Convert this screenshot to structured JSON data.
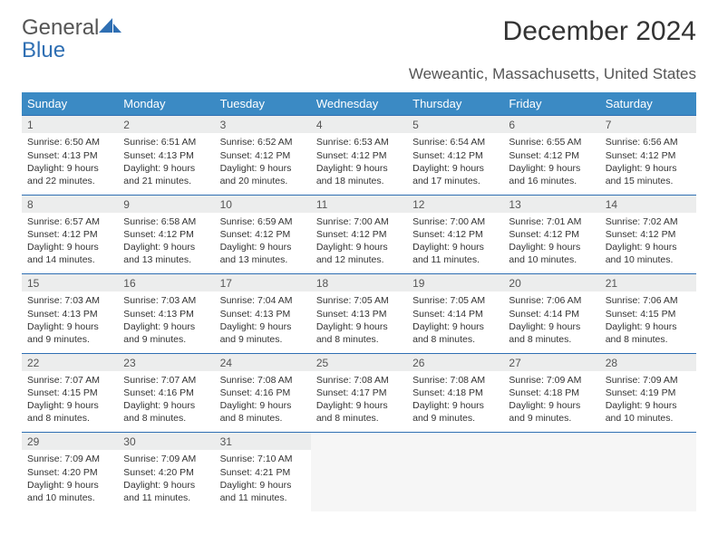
{
  "logo": {
    "word1": "General",
    "word2": "Blue"
  },
  "title": "December 2024",
  "location": "Weweantic, Massachusetts, United States",
  "colors": {
    "header_bg": "#3b8ac4",
    "header_text": "#ffffff",
    "daynum_bg": "#eceded",
    "daynum_border": "#2f6fb3",
    "body_text": "#333333",
    "logo_gray": "#555555",
    "logo_blue": "#2f6fb3"
  },
  "day_headers": [
    "Sunday",
    "Monday",
    "Tuesday",
    "Wednesday",
    "Thursday",
    "Friday",
    "Saturday"
  ],
  "weeks": [
    [
      {
        "n": "1",
        "sr": "Sunrise: 6:50 AM",
        "ss": "Sunset: 4:13 PM",
        "d1": "Daylight: 9 hours",
        "d2": "and 22 minutes."
      },
      {
        "n": "2",
        "sr": "Sunrise: 6:51 AM",
        "ss": "Sunset: 4:13 PM",
        "d1": "Daylight: 9 hours",
        "d2": "and 21 minutes."
      },
      {
        "n": "3",
        "sr": "Sunrise: 6:52 AM",
        "ss": "Sunset: 4:12 PM",
        "d1": "Daylight: 9 hours",
        "d2": "and 20 minutes."
      },
      {
        "n": "4",
        "sr": "Sunrise: 6:53 AM",
        "ss": "Sunset: 4:12 PM",
        "d1": "Daylight: 9 hours",
        "d2": "and 18 minutes."
      },
      {
        "n": "5",
        "sr": "Sunrise: 6:54 AM",
        "ss": "Sunset: 4:12 PM",
        "d1": "Daylight: 9 hours",
        "d2": "and 17 minutes."
      },
      {
        "n": "6",
        "sr": "Sunrise: 6:55 AM",
        "ss": "Sunset: 4:12 PM",
        "d1": "Daylight: 9 hours",
        "d2": "and 16 minutes."
      },
      {
        "n": "7",
        "sr": "Sunrise: 6:56 AM",
        "ss": "Sunset: 4:12 PM",
        "d1": "Daylight: 9 hours",
        "d2": "and 15 minutes."
      }
    ],
    [
      {
        "n": "8",
        "sr": "Sunrise: 6:57 AM",
        "ss": "Sunset: 4:12 PM",
        "d1": "Daylight: 9 hours",
        "d2": "and 14 minutes."
      },
      {
        "n": "9",
        "sr": "Sunrise: 6:58 AM",
        "ss": "Sunset: 4:12 PM",
        "d1": "Daylight: 9 hours",
        "d2": "and 13 minutes."
      },
      {
        "n": "10",
        "sr": "Sunrise: 6:59 AM",
        "ss": "Sunset: 4:12 PM",
        "d1": "Daylight: 9 hours",
        "d2": "and 13 minutes."
      },
      {
        "n": "11",
        "sr": "Sunrise: 7:00 AM",
        "ss": "Sunset: 4:12 PM",
        "d1": "Daylight: 9 hours",
        "d2": "and 12 minutes."
      },
      {
        "n": "12",
        "sr": "Sunrise: 7:00 AM",
        "ss": "Sunset: 4:12 PM",
        "d1": "Daylight: 9 hours",
        "d2": "and 11 minutes."
      },
      {
        "n": "13",
        "sr": "Sunrise: 7:01 AM",
        "ss": "Sunset: 4:12 PM",
        "d1": "Daylight: 9 hours",
        "d2": "and 10 minutes."
      },
      {
        "n": "14",
        "sr": "Sunrise: 7:02 AM",
        "ss": "Sunset: 4:12 PM",
        "d1": "Daylight: 9 hours",
        "d2": "and 10 minutes."
      }
    ],
    [
      {
        "n": "15",
        "sr": "Sunrise: 7:03 AM",
        "ss": "Sunset: 4:13 PM",
        "d1": "Daylight: 9 hours",
        "d2": "and 9 minutes."
      },
      {
        "n": "16",
        "sr": "Sunrise: 7:03 AM",
        "ss": "Sunset: 4:13 PM",
        "d1": "Daylight: 9 hours",
        "d2": "and 9 minutes."
      },
      {
        "n": "17",
        "sr": "Sunrise: 7:04 AM",
        "ss": "Sunset: 4:13 PM",
        "d1": "Daylight: 9 hours",
        "d2": "and 9 minutes."
      },
      {
        "n": "18",
        "sr": "Sunrise: 7:05 AM",
        "ss": "Sunset: 4:13 PM",
        "d1": "Daylight: 9 hours",
        "d2": "and 8 minutes."
      },
      {
        "n": "19",
        "sr": "Sunrise: 7:05 AM",
        "ss": "Sunset: 4:14 PM",
        "d1": "Daylight: 9 hours",
        "d2": "and 8 minutes."
      },
      {
        "n": "20",
        "sr": "Sunrise: 7:06 AM",
        "ss": "Sunset: 4:14 PM",
        "d1": "Daylight: 9 hours",
        "d2": "and 8 minutes."
      },
      {
        "n": "21",
        "sr": "Sunrise: 7:06 AM",
        "ss": "Sunset: 4:15 PM",
        "d1": "Daylight: 9 hours",
        "d2": "and 8 minutes."
      }
    ],
    [
      {
        "n": "22",
        "sr": "Sunrise: 7:07 AM",
        "ss": "Sunset: 4:15 PM",
        "d1": "Daylight: 9 hours",
        "d2": "and 8 minutes."
      },
      {
        "n": "23",
        "sr": "Sunrise: 7:07 AM",
        "ss": "Sunset: 4:16 PM",
        "d1": "Daylight: 9 hours",
        "d2": "and 8 minutes."
      },
      {
        "n": "24",
        "sr": "Sunrise: 7:08 AM",
        "ss": "Sunset: 4:16 PM",
        "d1": "Daylight: 9 hours",
        "d2": "and 8 minutes."
      },
      {
        "n": "25",
        "sr": "Sunrise: 7:08 AM",
        "ss": "Sunset: 4:17 PM",
        "d1": "Daylight: 9 hours",
        "d2": "and 8 minutes."
      },
      {
        "n": "26",
        "sr": "Sunrise: 7:08 AM",
        "ss": "Sunset: 4:18 PM",
        "d1": "Daylight: 9 hours",
        "d2": "and 9 minutes."
      },
      {
        "n": "27",
        "sr": "Sunrise: 7:09 AM",
        "ss": "Sunset: 4:18 PM",
        "d1": "Daylight: 9 hours",
        "d2": "and 9 minutes."
      },
      {
        "n": "28",
        "sr": "Sunrise: 7:09 AM",
        "ss": "Sunset: 4:19 PM",
        "d1": "Daylight: 9 hours",
        "d2": "and 10 minutes."
      }
    ],
    [
      {
        "n": "29",
        "sr": "Sunrise: 7:09 AM",
        "ss": "Sunset: 4:20 PM",
        "d1": "Daylight: 9 hours",
        "d2": "and 10 minutes."
      },
      {
        "n": "30",
        "sr": "Sunrise: 7:09 AM",
        "ss": "Sunset: 4:20 PM",
        "d1": "Daylight: 9 hours",
        "d2": "and 11 minutes."
      },
      {
        "n": "31",
        "sr": "Sunrise: 7:10 AM",
        "ss": "Sunset: 4:21 PM",
        "d1": "Daylight: 9 hours",
        "d2": "and 11 minutes."
      },
      null,
      null,
      null,
      null
    ]
  ]
}
